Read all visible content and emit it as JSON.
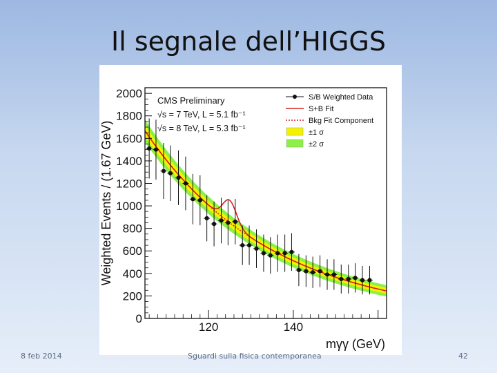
{
  "slide": {
    "title": "Il segnale dell’HIGGS",
    "footer_date": "8 feb 2014",
    "footer_center": "Sguardi sulla fisica contemporanea",
    "page_number": "42"
  },
  "chart_data": {
    "type": "scatter",
    "ylabel": "Weighted Events / (1.67 GeV)",
    "xlabel": "mγγ (GeV)",
    "xlim": [
      105,
      162
    ],
    "ylim": [
      0,
      2050
    ],
    "x_ticks": [
      120,
      140
    ],
    "y_ticks": [
      0,
      200,
      400,
      600,
      800,
      1000,
      1200,
      1400,
      1600,
      1800,
      2000
    ],
    "annotations": {
      "experiment": "CMS Preliminary",
      "line1": "√s = 7 TeV, L = 5.1 fb⁻¹",
      "line2": "√s = 8 TeV, L = 5.3 fb⁻¹"
    },
    "legend": [
      {
        "label": "S/B Weighted Data",
        "kind": "marker",
        "color": "#111111"
      },
      {
        "label": "S+B Fit",
        "kind": "line",
        "color": "#d42020"
      },
      {
        "label": "Bkg Fit Component",
        "kind": "dotted",
        "color": "#d42020"
      },
      {
        "label": "±1 σ",
        "kind": "band",
        "color": "#f5f200"
      },
      {
        "label": "±2 σ",
        "kind": "band",
        "color": "#8cf045"
      }
    ],
    "legend_position": "top-right",
    "series": [
      {
        "name": "S/B Weighted Data",
        "x": [
          106,
          107.6,
          109.4,
          111,
          112.9,
          114.6,
          116.3,
          118,
          119.6,
          121.3,
          123,
          124.6,
          126.3,
          128,
          129.6,
          131.3,
          133,
          134.6,
          136.3,
          138,
          139.6,
          141.3,
          143,
          144.6,
          146.3,
          148,
          149.6,
          151.3,
          153,
          154.6,
          156.3,
          158
        ],
        "y": [
          1510,
          1500,
          1310,
          1290,
          1250,
          1200,
          1060,
          1050,
          890,
          840,
          870,
          850,
          860,
          650,
          650,
          620,
          580,
          560,
          580,
          580,
          590,
          430,
          420,
          410,
          420,
          390,
          390,
          350,
          350,
          360,
          340,
          340
        ]
      }
    ],
    "fit": {
      "bkg_a": 1668,
      "bkg_b": 0.0337,
      "signal_mass": 125,
      "signal_amplitude": 200,
      "signal_width": 1.6
    }
  }
}
